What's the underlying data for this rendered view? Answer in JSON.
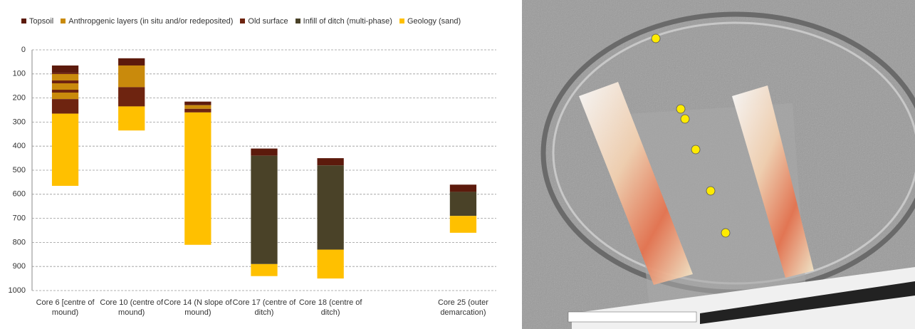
{
  "chart_data": {
    "type": "bar",
    "stacked": true,
    "y_inverted": true,
    "categories": [
      "Core 6 [centre of mound)",
      "Core 10 (centre of mound)",
      "Core 14 (N slope of mound)",
      "Core 17 (centre of ditch)",
      "Core 18 (centre of ditch)",
      null,
      "Core 25 (outer demarcation)"
    ],
    "start": [
      65,
      35,
      215,
      410,
      450,
      null,
      560
    ],
    "series": [
      {
        "name": "Topsoil",
        "color": "#5c1a0c",
        "values": [
          30,
          30,
          15,
          30,
          30,
          null,
          30
        ]
      },
      {
        "name": "Anthropgenic layers  (in situ and/or redeposited)",
        "color": "#c98a0c",
        "values": [
          110,
          90,
          15,
          null,
          null,
          null,
          null
        ]
      },
      {
        "name": "Old surface",
        "color": "#6e2410",
        "values": [
          60,
          80,
          15,
          null,
          null,
          null,
          null
        ]
      },
      {
        "name": "Infill of ditch (multi-phase)",
        "color": "#4a4228",
        "values": [
          null,
          null,
          null,
          450,
          350,
          null,
          100
        ]
      },
      {
        "name": "Geology (sand)",
        "color": "#ffc000",
        "values": [
          300,
          100,
          550,
          50,
          120,
          null,
          70
        ]
      }
    ],
    "ylim": [
      0,
      1000
    ],
    "yticks": [
      0,
      100,
      200,
      300,
      400,
      500,
      600,
      700,
      800,
      900,
      1000
    ],
    "grid": true
  }
}
